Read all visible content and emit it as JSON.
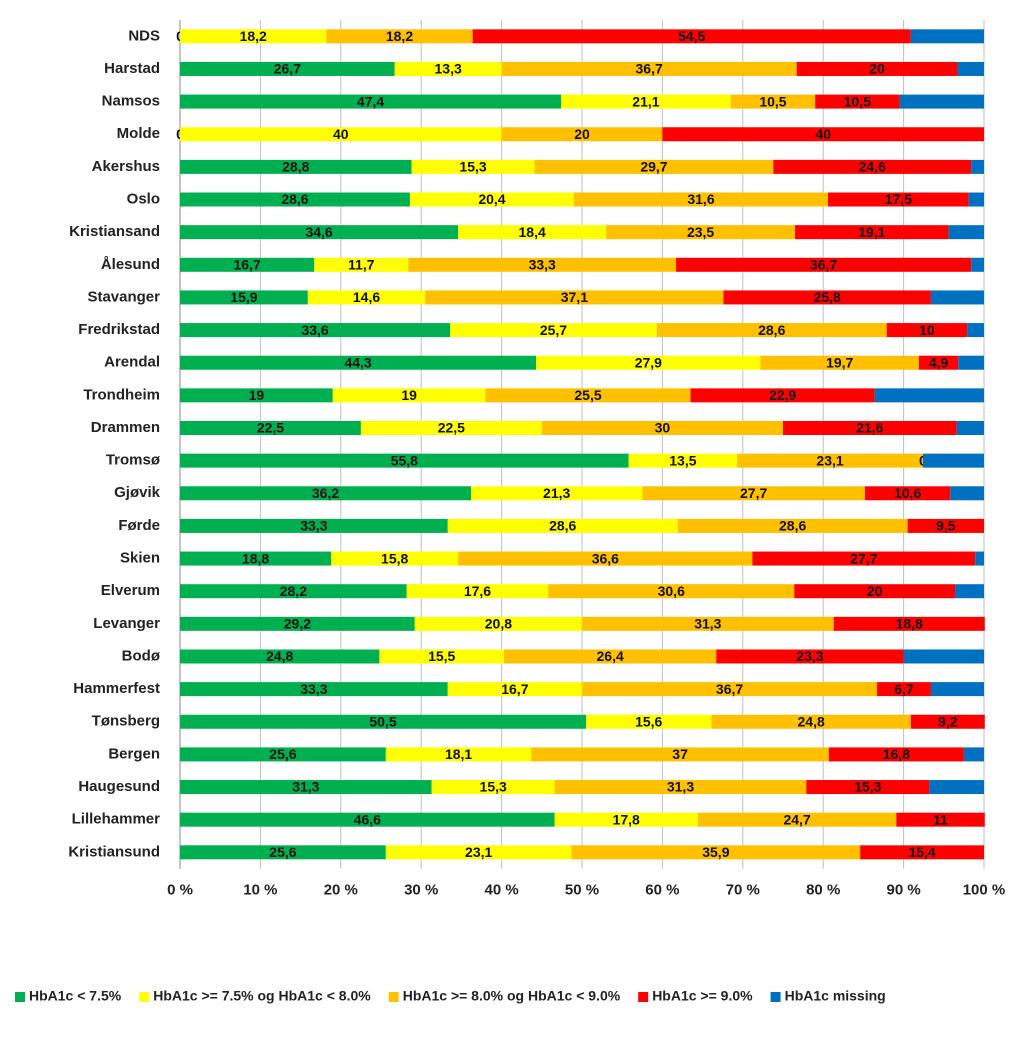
{
  "chart_data": {
    "type": "stacked-bar-horizontal-percent",
    "categories": [
      "NDS",
      "Harstad",
      "Namsos",
      "Molde",
      "Akershus",
      "Oslo",
      "Kristiansand",
      "Ålesund",
      "Stavanger",
      "Fredrikstad",
      "Arendal",
      "Trondheim",
      "Drammen",
      "Tromsø",
      "Gjøvik",
      "Førde",
      "Skien",
      "Elverum",
      "Levanger",
      "Bodø",
      "Hammerfest",
      "Tønsberg",
      "Bergen",
      "Haugesund",
      "Lillehammer",
      "Kristiansund"
    ],
    "series": [
      {
        "name": "HbA1c < 7.5%",
        "color": "#00b050",
        "values": [
          0,
          26.7,
          47.4,
          0,
          28.8,
          28.6,
          34.6,
          16.7,
          15.9,
          33.6,
          44.3,
          19,
          22.5,
          55.8,
          36.2,
          33.3,
          18.8,
          28.2,
          29.2,
          24.8,
          33.3,
          50.5,
          25.6,
          31.3,
          46.6,
          25.6
        ],
        "value_labels": [
          "0",
          "26,7",
          "47,4",
          "0",
          "28,8",
          "28,6",
          "34,6",
          "16,7",
          "15,9",
          "33,6",
          "44,3",
          "19",
          "22,5",
          "55,8",
          "36,2",
          "33,3",
          "18,8",
          "28,2",
          "29,2",
          "24,8",
          "33,3",
          "50,5",
          "25,6",
          "31,3",
          "46,6",
          "25,6"
        ]
      },
      {
        "name": "HbA1c >= 7.5% og HbA1c < 8.0%",
        "color": "#ffff00",
        "values": [
          18.2,
          13.3,
          21.1,
          40,
          15.3,
          20.4,
          18.4,
          11.7,
          14.6,
          25.7,
          27.9,
          19,
          22.5,
          13.5,
          21.3,
          28.6,
          15.8,
          17.6,
          20.8,
          15.5,
          16.7,
          15.6,
          18.1,
          15.3,
          17.8,
          23.1
        ],
        "value_labels": [
          "18,2",
          "13,3",
          "21,1",
          "40",
          "15,3",
          "20,4",
          "18,4",
          "11,7",
          "14,6",
          "25,7",
          "27,9",
          "19",
          "22,5",
          "13,5",
          "21,3",
          "28,6",
          "15,8",
          "17,6",
          "20,8",
          "15,5",
          "16,7",
          "15,6",
          "18,1",
          "15,3",
          "17,8",
          "23,1"
        ]
      },
      {
        "name": "HbA1c >= 8.0% og HbA1c < 9.0%",
        "color": "#ffc000",
        "values": [
          18.2,
          36.7,
          10.5,
          20,
          29.7,
          31.6,
          23.5,
          33.3,
          37.1,
          28.6,
          19.7,
          25.5,
          30,
          23.1,
          27.7,
          28.6,
          36.6,
          30.6,
          31.3,
          26.4,
          36.7,
          24.8,
          37,
          31.3,
          24.7,
          35.9
        ],
        "value_labels": [
          "18,2",
          "36,7",
          "10,5",
          "20",
          "29,7",
          "31,6",
          "23,5",
          "33,3",
          "37,1",
          "28,6",
          "19,7",
          "25,5",
          "30",
          "23,1",
          "27,7",
          "28,6",
          "36,6",
          "30,6",
          "31,3",
          "26,4",
          "36,7",
          "24,8",
          "37",
          "31,3",
          "24,7",
          "35,9"
        ]
      },
      {
        "name": "HbA1c >= 9.0%",
        "color": "#ff0000",
        "values": [
          54.5,
          20,
          10.5,
          40,
          24.6,
          17.5,
          19.1,
          36.7,
          25.8,
          10,
          4.9,
          22.9,
          21.6,
          0,
          10.6,
          9.5,
          27.7,
          20,
          18.8,
          23.3,
          6.7,
          9.2,
          16.8,
          15.3,
          11,
          15.4
        ],
        "value_labels": [
          "54,5",
          "20",
          "10,5",
          "40",
          "24,6",
          "17,5",
          "19,1",
          "36,7",
          "25,8",
          "10",
          "4,9",
          "22,9",
          "21,6",
          "0",
          "10,6",
          "9,5",
          "27,7",
          "20",
          "18,8",
          "23,3",
          "6,7",
          "9,2",
          "16,8",
          "15,3",
          "11",
          "15,4"
        ]
      },
      {
        "name": "HbA1c missing",
        "color": "#0070c0",
        "values": [
          9.1,
          3.3,
          10.5,
          0,
          1.6,
          1.9,
          4.4,
          1.6,
          6.6,
          2.1,
          3.2,
          13.6,
          3.4,
          7.6,
          4.2,
          0,
          1.1,
          3.6,
          0,
          10,
          6.6,
          0,
          2.5,
          6.8,
          0,
          0
        ]
      }
    ],
    "xlim": [
      0,
      100
    ],
    "xticks": [
      {
        "value": 0,
        "label": "0 %"
      },
      {
        "value": 10,
        "label": "10 %"
      },
      {
        "value": 20,
        "label": "20 %"
      },
      {
        "value": 30,
        "label": "30 %"
      },
      {
        "value": 40,
        "label": "40 %"
      },
      {
        "value": 50,
        "label": "50 %"
      },
      {
        "value": 60,
        "label": "60 %"
      },
      {
        "value": 70,
        "label": "70 %"
      },
      {
        "value": 80,
        "label": "80 %"
      },
      {
        "value": 90,
        "label": "90 %"
      },
      {
        "value": 100,
        "label": "100 %"
      }
    ],
    "grid": true,
    "legend": "bottom"
  }
}
